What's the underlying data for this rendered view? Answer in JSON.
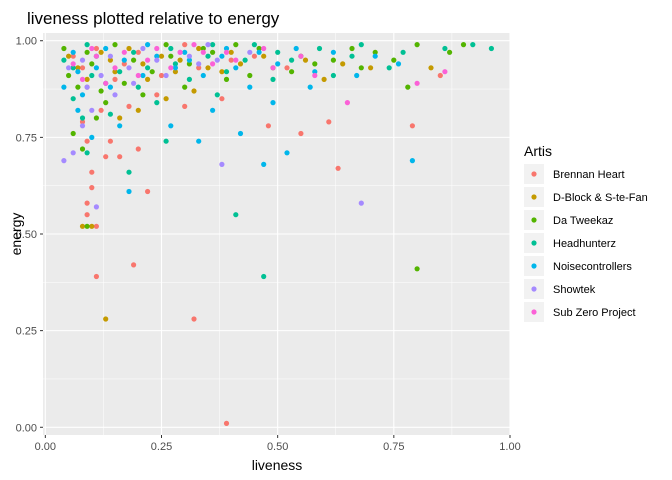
{
  "chart_data": {
    "type": "scatter",
    "title": "liveness plotted relative to energy",
    "xlabel": "liveness",
    "ylabel": "energy",
    "xlim": [
      -0.005,
      1.0
    ],
    "ylim": [
      -0.02,
      1.02
    ],
    "x_ticks": [
      0.0,
      0.25,
      0.5,
      0.75,
      1.0
    ],
    "x_tick_labels": [
      "0.00",
      "0.25",
      "0.50",
      "0.75",
      "1.00"
    ],
    "y_ticks": [
      0.0,
      0.25,
      0.5,
      0.75,
      1.0
    ],
    "y_tick_labels": [
      "0.00",
      "0.25",
      "0.50",
      "0.75",
      "1.00"
    ],
    "grid": true,
    "legend_title": "Artis",
    "legend_position": "right",
    "series": [
      {
        "name": "Brennan Heart",
        "color": "#F8766D",
        "points": [
          [
            0.39,
            0.01
          ],
          [
            0.32,
            0.28
          ],
          [
            0.19,
            0.42
          ],
          [
            0.11,
            0.39
          ],
          [
            0.09,
            0.55
          ],
          [
            0.09,
            0.58
          ],
          [
            0.11,
            0.52
          ],
          [
            0.22,
            0.61
          ],
          [
            0.1,
            0.66
          ],
          [
            0.1,
            0.62
          ],
          [
            0.13,
            0.7
          ],
          [
            0.16,
            0.7
          ],
          [
            0.2,
            0.72
          ],
          [
            0.09,
            0.74
          ],
          [
            0.14,
            0.74
          ],
          [
            0.63,
            0.67
          ],
          [
            0.61,
            0.79
          ],
          [
            0.79,
            0.78
          ],
          [
            0.48,
            0.78
          ],
          [
            0.55,
            0.76
          ],
          [
            0.08,
            0.79
          ],
          [
            0.12,
            0.82
          ],
          [
            0.18,
            0.83
          ],
          [
            0.3,
            0.83
          ],
          [
            0.38,
            0.85
          ],
          [
            0.85,
            0.91
          ],
          [
            0.09,
            0.88
          ],
          [
            0.15,
            0.9
          ],
          [
            0.25,
            0.91
          ],
          [
            0.33,
            0.93
          ],
          [
            0.4,
            0.95
          ],
          [
            0.06,
            0.96
          ],
          [
            0.2,
            0.97
          ],
          [
            0.45,
            0.96
          ],
          [
            0.11,
            0.98
          ],
          [
            0.3,
            0.99
          ],
          [
            0.24,
            0.86
          ],
          [
            0.17,
            0.94
          ],
          [
            0.52,
            0.93
          ],
          [
            0.08,
            0.93
          ]
        ]
      },
      {
        "name": "D-Block & S-te-Fan",
        "color": "#C49A00",
        "points": [
          [
            0.13,
            0.28
          ],
          [
            0.08,
            0.52
          ],
          [
            0.1,
            0.52
          ],
          [
            0.16,
            0.8
          ],
          [
            0.2,
            0.82
          ],
          [
            0.26,
            0.85
          ],
          [
            0.32,
            0.87
          ],
          [
            0.83,
            0.93
          ],
          [
            0.64,
            0.94
          ],
          [
            0.7,
            0.93
          ],
          [
            0.56,
            0.95
          ],
          [
            0.47,
            0.96
          ],
          [
            0.4,
            0.97
          ],
          [
            0.35,
            0.93
          ],
          [
            0.28,
            0.92
          ],
          [
            0.22,
            0.9
          ],
          [
            0.15,
            0.92
          ],
          [
            0.09,
            0.9
          ],
          [
            0.05,
            0.96
          ],
          [
            0.12,
            0.97
          ],
          [
            0.18,
            0.98
          ],
          [
            0.25,
            0.96
          ],
          [
            0.33,
            0.98
          ],
          [
            0.42,
            0.94
          ],
          [
            0.6,
            0.9
          ],
          [
            0.07,
            0.93
          ],
          [
            0.14,
            0.95
          ],
          [
            0.21,
            0.94
          ],
          [
            0.29,
            0.95
          ],
          [
            0.38,
            0.92
          ]
        ]
      },
      {
        "name": "Da Tweekaz",
        "color": "#53B400",
        "points": [
          [
            0.8,
            0.41
          ],
          [
            0.09,
            0.52
          ],
          [
            0.08,
            0.72
          ],
          [
            0.06,
            0.76
          ],
          [
            0.11,
            0.8
          ],
          [
            0.13,
            0.84
          ],
          [
            0.21,
            0.86
          ],
          [
            0.3,
            0.88
          ],
          [
            0.39,
            0.9
          ],
          [
            0.49,
            0.93
          ],
          [
            0.58,
            0.94
          ],
          [
            0.68,
            0.93
          ],
          [
            0.75,
            0.95
          ],
          [
            0.87,
            0.97
          ],
          [
            0.9,
            0.99
          ],
          [
            0.8,
            0.99
          ],
          [
            0.66,
            0.98
          ],
          [
            0.55,
            0.96
          ],
          [
            0.46,
            0.98
          ],
          [
            0.36,
            0.97
          ],
          [
            0.27,
            0.96
          ],
          [
            0.19,
            0.95
          ],
          [
            0.1,
            0.94
          ],
          [
            0.05,
            0.91
          ],
          [
            0.07,
            0.88
          ],
          [
            0.12,
            0.87
          ],
          [
            0.17,
            0.89
          ],
          [
            0.23,
            0.92
          ],
          [
            0.31,
            0.94
          ],
          [
            0.44,
            0.91
          ],
          [
            0.53,
            0.92
          ],
          [
            0.62,
            0.95
          ],
          [
            0.71,
            0.97
          ],
          [
            0.78,
            0.88
          ],
          [
            0.04,
            0.98
          ],
          [
            0.15,
            0.99
          ],
          [
            0.26,
            0.99
          ],
          [
            0.34,
            0.98
          ],
          [
            0.41,
            0.99
          ],
          [
            0.09,
            0.97
          ]
        ]
      },
      {
        "name": "Headhunterz",
        "color": "#00C094",
        "points": [
          [
            0.47,
            0.39
          ],
          [
            0.41,
            0.55
          ],
          [
            0.18,
            0.66
          ],
          [
            0.09,
            0.71
          ],
          [
            0.26,
            0.74
          ],
          [
            0.08,
            0.8
          ],
          [
            0.14,
            0.81
          ],
          [
            0.24,
            0.84
          ],
          [
            0.37,
            0.86
          ],
          [
            0.49,
            0.9
          ],
          [
            0.62,
            0.91
          ],
          [
            0.74,
            0.93
          ],
          [
            0.96,
            0.98
          ],
          [
            0.92,
            0.99
          ],
          [
            0.86,
            0.98
          ],
          [
            0.77,
            0.97
          ],
          [
            0.68,
            0.99
          ],
          [
            0.59,
            0.98
          ],
          [
            0.5,
            0.97
          ],
          [
            0.43,
            0.95
          ],
          [
            0.35,
            0.96
          ],
          [
            0.28,
            0.94
          ],
          [
            0.22,
            0.93
          ],
          [
            0.16,
            0.92
          ],
          [
            0.1,
            0.91
          ],
          [
            0.06,
            0.93
          ],
          [
            0.04,
            0.95
          ],
          [
            0.11,
            0.96
          ],
          [
            0.19,
            0.97
          ],
          [
            0.27,
            0.98
          ],
          [
            0.36,
            0.99
          ],
          [
            0.45,
            0.99
          ],
          [
            0.53,
            0.95
          ],
          [
            0.66,
            0.96
          ],
          [
            0.13,
            0.89
          ],
          [
            0.2,
            0.88
          ],
          [
            0.31,
            0.9
          ],
          [
            0.39,
            0.92
          ],
          [
            0.06,
            0.85
          ],
          [
            0.09,
            0.99
          ]
        ]
      },
      {
        "name": "Noisecontrollers",
        "color": "#00B6EB",
        "points": [
          [
            0.47,
            0.68
          ],
          [
            0.79,
            0.69
          ],
          [
            0.18,
            0.61
          ],
          [
            0.52,
            0.71
          ],
          [
            0.33,
            0.74
          ],
          [
            0.42,
            0.76
          ],
          [
            0.27,
            0.78
          ],
          [
            0.36,
            0.82
          ],
          [
            0.49,
            0.84
          ],
          [
            0.57,
            0.88
          ],
          [
            0.67,
            0.91
          ],
          [
            0.76,
            0.94
          ],
          [
            0.71,
            0.96
          ],
          [
            0.62,
            0.97
          ],
          [
            0.54,
            0.98
          ],
          [
            0.46,
            0.97
          ],
          [
            0.38,
            0.96
          ],
          [
            0.31,
            0.95
          ],
          [
            0.24,
            0.96
          ],
          [
            0.17,
            0.95
          ],
          [
            0.11,
            0.93
          ],
          [
            0.07,
            0.92
          ],
          [
            0.04,
            0.88
          ],
          [
            0.08,
            0.86
          ],
          [
            0.14,
            0.88
          ],
          [
            0.21,
            0.91
          ],
          [
            0.28,
            0.93
          ],
          [
            0.34,
            0.91
          ],
          [
            0.41,
            0.93
          ],
          [
            0.5,
            0.94
          ],
          [
            0.06,
            0.97
          ],
          [
            0.13,
            0.98
          ],
          [
            0.22,
            0.99
          ],
          [
            0.3,
            0.97
          ],
          [
            0.39,
            0.98
          ],
          [
            0.16,
            0.78
          ],
          [
            0.1,
            0.75
          ],
          [
            0.44,
            0.88
          ],
          [
            0.58,
            0.92
          ],
          [
            0.07,
            0.82
          ]
        ]
      },
      {
        "name": "Showtek",
        "color": "#A58AFF",
        "points": [
          [
            0.68,
            0.58
          ],
          [
            0.38,
            0.68
          ],
          [
            0.11,
            0.57
          ],
          [
            0.04,
            0.69
          ],
          [
            0.06,
            0.71
          ],
          [
            0.08,
            0.78
          ],
          [
            0.1,
            0.82
          ],
          [
            0.15,
            0.86
          ],
          [
            0.19,
            0.89
          ],
          [
            0.26,
            0.91
          ],
          [
            0.33,
            0.94
          ],
          [
            0.29,
            0.97
          ],
          [
            0.21,
            0.98
          ],
          [
            0.14,
            0.96
          ],
          [
            0.08,
            0.95
          ],
          [
            0.05,
            0.93
          ],
          [
            0.12,
            0.91
          ],
          [
            0.18,
            0.93
          ],
          [
            0.24,
            0.95
          ],
          [
            0.31,
            0.96
          ],
          [
            0.37,
            0.95
          ],
          [
            0.44,
            0.97
          ],
          [
            0.35,
            0.99
          ],
          [
            0.09,
            0.88
          ]
        ]
      },
      {
        "name": "Sub Zero Project",
        "color": "#FB61D7",
        "points": [
          [
            0.65,
            0.84
          ],
          [
            0.86,
            0.92
          ],
          [
            0.8,
            0.89
          ],
          [
            0.58,
            0.91
          ],
          [
            0.49,
            0.93
          ],
          [
            0.41,
            0.95
          ],
          [
            0.34,
            0.97
          ],
          [
            0.27,
            0.93
          ],
          [
            0.2,
            0.91
          ],
          [
            0.13,
            0.89
          ],
          [
            0.08,
            0.9
          ],
          [
            0.06,
            0.94
          ],
          [
            0.11,
            0.96
          ],
          [
            0.17,
            0.97
          ],
          [
            0.24,
            0.98
          ],
          [
            0.32,
            0.99
          ],
          [
            0.39,
            0.97
          ],
          [
            0.47,
            0.98
          ],
          [
            0.55,
            0.96
          ],
          [
            0.15,
            0.93
          ],
          [
            0.22,
            0.95
          ],
          [
            0.29,
            0.97
          ],
          [
            0.36,
            0.94
          ],
          [
            0.1,
            0.98
          ]
        ]
      }
    ]
  }
}
